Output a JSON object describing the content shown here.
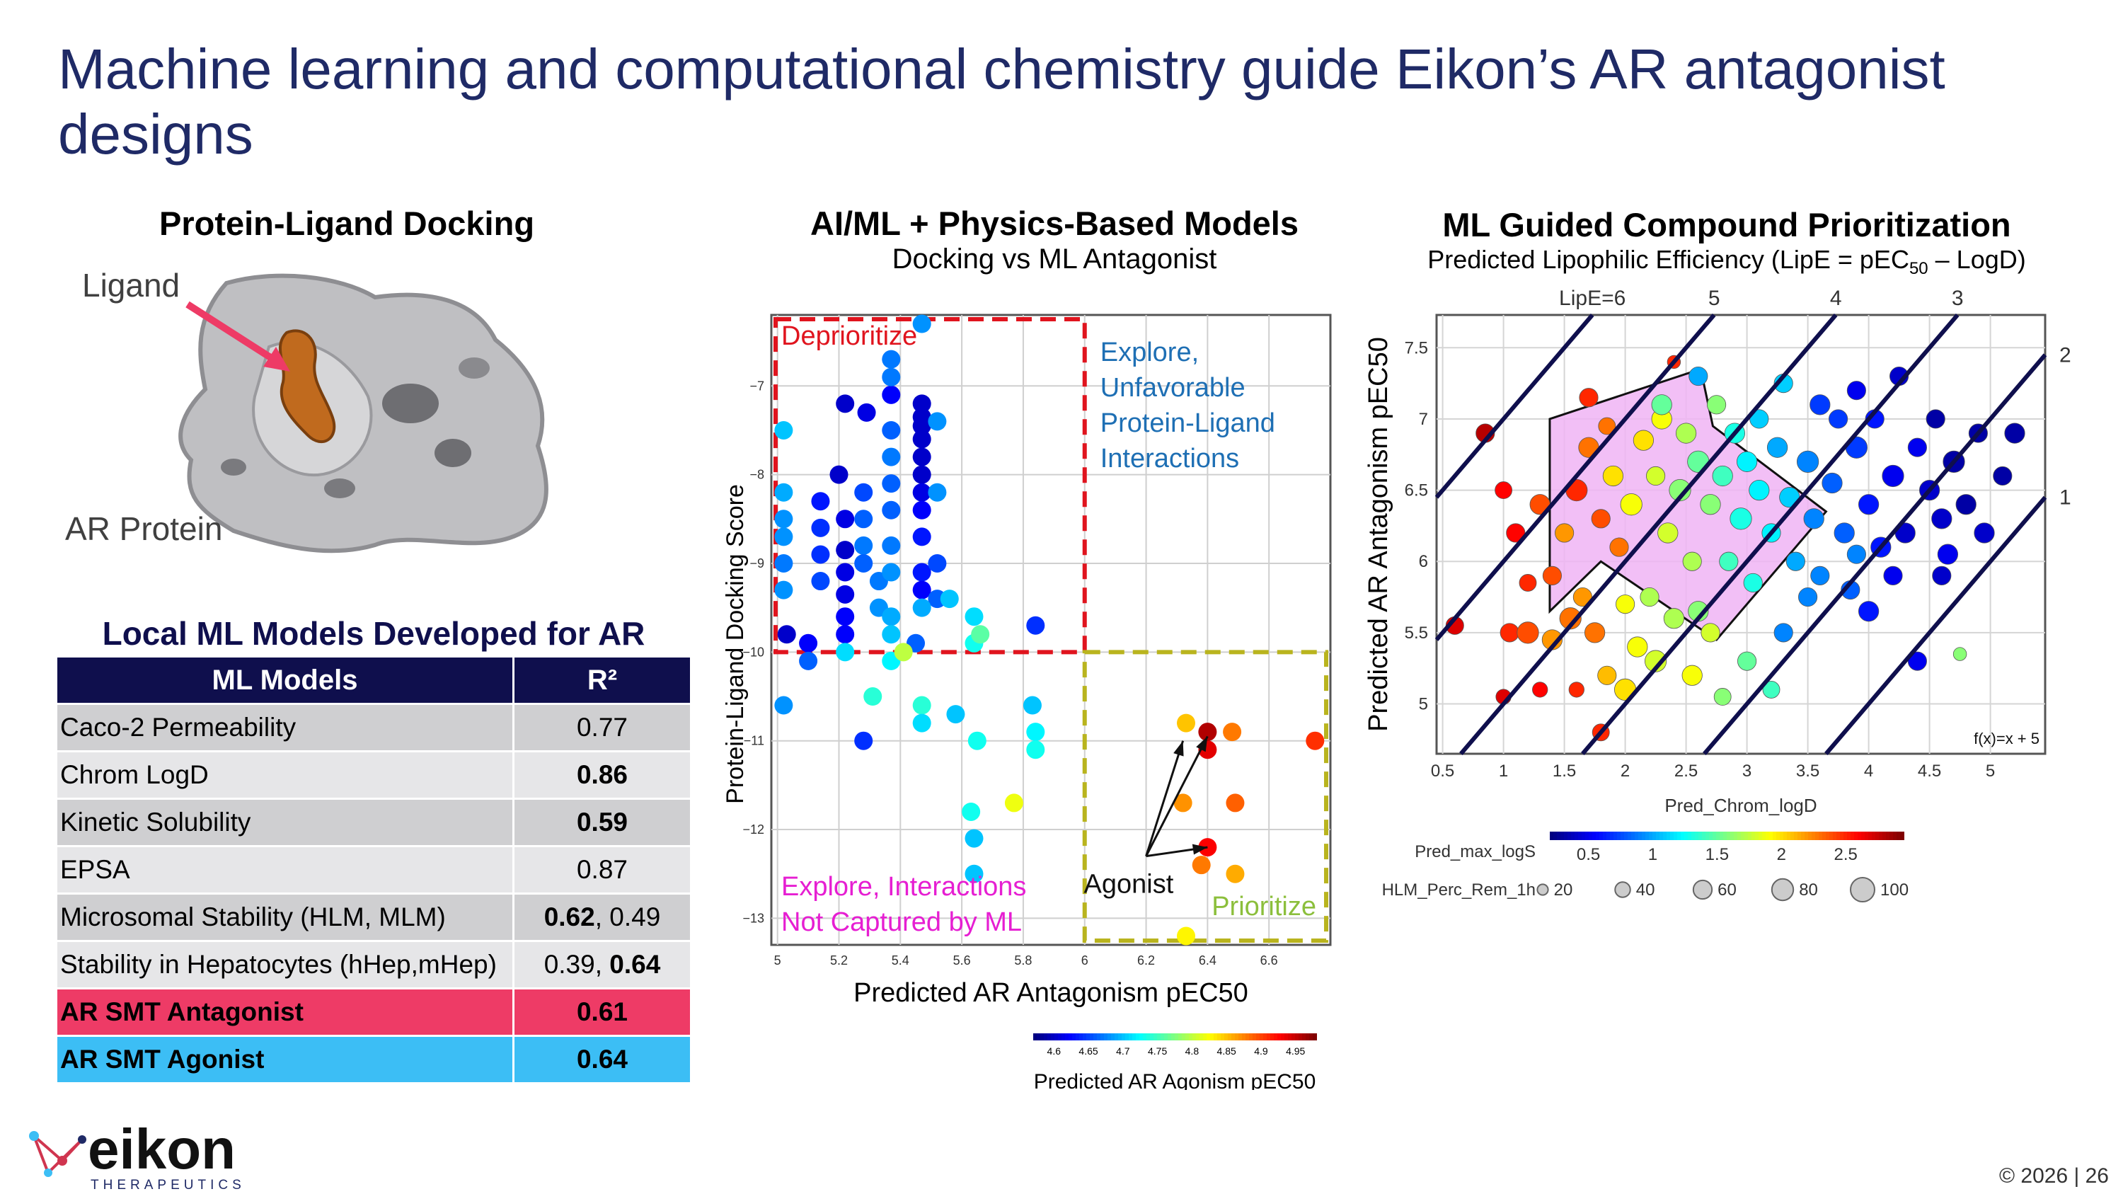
{
  "slide": {
    "title": "Machine learning and computational chemistry guide Eikon’s AR antagonist designs",
    "copyright": "© 2026 | 26"
  },
  "docking": {
    "title": "Protein-Ligand Docking",
    "ligand_label": "Ligand",
    "protein_label": "AR Protein"
  },
  "models": {
    "title": "Local ML Models Developed for AR",
    "header_model": "ML Models",
    "header_r2": "R²",
    "rows": [
      {
        "name": "Caco-2 Permeability",
        "r2": "0.77",
        "bold": false
      },
      {
        "name": "Chrom LogD",
        "r2": "0.86",
        "bold": true
      },
      {
        "name": "Kinetic Solubility",
        "r2": "0.59",
        "bold": true
      },
      {
        "name": "EPSA",
        "r2": "0.87",
        "bold": false
      },
      {
        "name": "Microsomal Stability (HLM, MLM)",
        "r2a": "0.62",
        "r2b": ", 0.49"
      },
      {
        "name": "Stability in Hepatocytes (hHep,mHep)",
        "r2a": "0.39, ",
        "r2b": "0.64"
      },
      {
        "name": "AR SMT Antagonist",
        "r2": "0.61"
      },
      {
        "name": "AR SMT Agonist",
        "r2": "0.64"
      }
    ]
  },
  "logo": {
    "name": "eikon",
    "tagline": "THERAPEUTICS"
  },
  "colors": {
    "title": "#1f2a66",
    "header_fill": "#0f0f4d",
    "antagonist_row": "#ee3b66",
    "agonist_row": "#3cbef5",
    "deprioritize": "#e0141e",
    "prioritize": "#b9b41e",
    "explore_unfavorable": "#1e6fb4",
    "explore_not_captured": "#e61ed2",
    "hull": "#f0b4f5"
  },
  "chart_data": [
    {
      "type": "scatter",
      "title": "AI/ML + Physics-Based Models",
      "subtitle": "Docking vs ML Antagonist",
      "xlabel": "Predicted AR Antagonism pEC50",
      "ylabel": "Protein-Ligand Docking Score",
      "xlim": [
        4.98,
        6.8
      ],
      "ylim": [
        -13.3,
        -6.2
      ],
      "xticks": [
        "5",
        "5.2",
        "5.4",
        "5.6",
        "5.8",
        "6",
        "6.2",
        "6.4",
        "6.6"
      ],
      "yticks": [
        "−7",
        "−8",
        "−9",
        "−10",
        "−11",
        "−12",
        "−13"
      ],
      "grid": true,
      "colorbar": {
        "label": "Predicted AR Agonism pEC50",
        "ticks": [
          "4.6",
          "4.65",
          "4.7",
          "4.75",
          "4.8",
          "4.85",
          "4.9",
          "4.95"
        ],
        "range": [
          4.57,
          4.98
        ]
      },
      "regions": {
        "deprioritize": "Deprioritize",
        "explore_unfavorable": "Explore, Unfavorable Protein-Ligand Interactions",
        "explore_not_captured": "Explore, Interactions Not Captured by ML",
        "prioritize": "Prioritize",
        "agonist": "Agonist"
      },
      "points": [
        [
          5.03,
          -9.8,
          4.6
        ],
        [
          5.1,
          -9.9,
          4.62
        ],
        [
          5.22,
          -7.2,
          4.6
        ],
        [
          5.29,
          -7.3,
          4.61
        ],
        [
          5.37,
          -7.1,
          4.62
        ],
        [
          5.37,
          -6.7,
          4.67
        ],
        [
          5.47,
          -7.2,
          4.6
        ],
        [
          5.47,
          -7.35,
          4.6
        ],
        [
          5.47,
          -7.45,
          4.6
        ],
        [
          5.47,
          -7.6,
          4.6
        ],
        [
          5.47,
          -7.8,
          4.6
        ],
        [
          5.47,
          -8.0,
          4.6
        ],
        [
          5.47,
          -8.2,
          4.61
        ],
        [
          5.47,
          -8.4,
          4.62
        ],
        [
          5.47,
          -8.7,
          4.63
        ],
        [
          5.47,
          -9.1,
          4.63
        ],
        [
          5.47,
          -9.3,
          4.62
        ],
        [
          5.52,
          -9.0,
          4.65
        ],
        [
          5.52,
          -9.4,
          4.66
        ],
        [
          5.45,
          -9.9,
          4.66
        ],
        [
          5.2,
          -8.0,
          4.6
        ],
        [
          5.22,
          -8.5,
          4.61
        ],
        [
          5.22,
          -8.85,
          4.6
        ],
        [
          5.22,
          -9.1,
          4.61
        ],
        [
          5.22,
          -9.35,
          4.61
        ],
        [
          5.22,
          -9.6,
          4.62
        ],
        [
          5.22,
          -9.8,
          4.62
        ],
        [
          5.02,
          -8.2,
          4.69
        ],
        [
          5.02,
          -8.5,
          4.68
        ],
        [
          5.02,
          -8.7,
          4.68
        ],
        [
          5.02,
          -9.0,
          4.67
        ],
        [
          5.02,
          -9.3,
          4.68
        ],
        [
          5.02,
          -7.5,
          4.7
        ],
        [
          5.14,
          -8.3,
          4.63
        ],
        [
          5.14,
          -8.6,
          4.64
        ],
        [
          5.14,
          -8.9,
          4.64
        ],
        [
          5.14,
          -9.2,
          4.65
        ],
        [
          5.28,
          -8.2,
          4.65
        ],
        [
          5.28,
          -8.5,
          4.66
        ],
        [
          5.28,
          -8.8,
          4.67
        ],
        [
          5.28,
          -9.0,
          4.66
        ],
        [
          5.33,
          -9.2,
          4.67
        ],
        [
          5.33,
          -9.5,
          4.68
        ],
        [
          5.37,
          -6.9,
          4.67
        ],
        [
          5.37,
          -7.5,
          4.66
        ],
        [
          5.37,
          -7.8,
          4.67
        ],
        [
          5.37,
          -8.1,
          4.66
        ],
        [
          5.37,
          -8.4,
          4.66
        ],
        [
          5.37,
          -8.8,
          4.67
        ],
        [
          5.37,
          -9.1,
          4.68
        ],
        [
          5.37,
          -9.6,
          4.69
        ],
        [
          5.37,
          -9.8,
          4.7
        ],
        [
          5.47,
          -6.3,
          4.68
        ],
        [
          5.47,
          -9.5,
          4.69
        ],
        [
          5.52,
          -7.4,
          4.68
        ],
        [
          5.52,
          -8.2,
          4.68
        ],
        [
          5.56,
          -9.4,
          4.7
        ],
        [
          5.64,
          -9.6,
          4.71
        ],
        [
          5.64,
          -9.9,
          4.73
        ],
        [
          5.66,
          -9.8,
          4.76
        ],
        [
          5.84,
          -9.7,
          4.64
        ],
        [
          5.1,
          -10.1,
          4.66
        ],
        [
          5.02,
          -10.6,
          4.68
        ],
        [
          5.22,
          -10.0,
          4.71
        ],
        [
          5.31,
          -10.5,
          4.74
        ],
        [
          5.28,
          -11.0,
          4.64
        ],
        [
          5.37,
          -10.1,
          4.72
        ],
        [
          5.47,
          -10.6,
          4.74
        ],
        [
          5.47,
          -10.8,
          4.71
        ],
        [
          5.58,
          -10.7,
          4.7
        ],
        [
          5.63,
          -11.8,
          4.73
        ],
        [
          5.64,
          -12.1,
          4.7
        ],
        [
          5.64,
          -12.5,
          4.7
        ],
        [
          5.65,
          -11.0,
          4.73
        ],
        [
          5.77,
          -11.7,
          4.82
        ],
        [
          5.83,
          -10.6,
          4.7
        ],
        [
          5.84,
          -10.9,
          4.72
        ],
        [
          5.84,
          -11.1,
          4.73
        ],
        [
          5.41,
          -10.0,
          4.8
        ],
        [
          6.33,
          -10.8,
          4.85
        ],
        [
          6.32,
          -11.7,
          4.87
        ],
        [
          6.4,
          -11.1,
          4.94
        ],
        [
          6.4,
          -12.2,
          4.93
        ],
        [
          6.4,
          -10.9,
          4.96
        ],
        [
          6.48,
          -10.9,
          4.88
        ],
        [
          6.49,
          -11.7,
          4.89
        ],
        [
          6.49,
          -12.5,
          4.86
        ],
        [
          6.33,
          -13.2,
          4.83
        ],
        [
          6.75,
          -11.0,
          4.91
        ],
        [
          6.38,
          -12.4,
          4.88
        ]
      ],
      "arrows_to": [
        [
          6.32,
          -11.0
        ],
        [
          6.4,
          -10.95
        ],
        [
          6.4,
          -12.2
        ]
      ]
    },
    {
      "type": "scatter",
      "title": "ML Guided Compound Prioritization",
      "subtitle": "Predicted Lipophilic Efficiency (LipE = pEC50 – LogD)",
      "ylabel": "Predicted AR Antagonism pEC50",
      "xlabel": "Pred_Chrom_logD",
      "xlim": [
        0.45,
        5.45
      ],
      "ylim": [
        4.65,
        7.73
      ],
      "xticks": [
        "0.5",
        "1",
        "1.5",
        "2",
        "2.5",
        "3",
        "3.5",
        "4",
        "4.5",
        "5"
      ],
      "yticks": [
        "5",
        "5.5",
        "6",
        "6.5",
        "7",
        "7.5"
      ],
      "grid": true,
      "lipe_lines": [
        {
          "label": "LipE=6",
          "offset": 6
        },
        {
          "label": "5",
          "offset": 5
        },
        {
          "label": "4",
          "offset": 4
        },
        {
          "label": "3",
          "offset": 3
        },
        {
          "label": "2",
          "offset": 2
        },
        {
          "label": "1",
          "offset": 1
        }
      ],
      "function_label": "f(x)=x + 5",
      "color_legend": {
        "label": "Pred_max_logS",
        "ticks": [
          "0.5",
          "1",
          "1.5",
          "2",
          "2.5"
        ],
        "range": [
          0.2,
          2.95
        ]
      },
      "size_legend": {
        "label": "HLM_Perc_Rem_1h",
        "values": [
          "20",
          "40",
          "60",
          "80",
          "100"
        ]
      },
      "hull": [
        [
          1.38,
          7.0
        ],
        [
          2.62,
          7.35
        ],
        [
          2.72,
          6.95
        ],
        [
          3.65,
          6.35
        ],
        [
          2.75,
          5.45
        ],
        [
          1.8,
          6.0
        ],
        [
          1.38,
          5.65
        ]
      ],
      "points": [
        [
          0.85,
          6.9,
          2.8,
          60
        ],
        [
          1.0,
          6.5,
          2.6,
          50
        ],
        [
          1.7,
          7.15,
          2.5,
          60
        ],
        [
          0.6,
          5.55,
          2.7,
          55
        ],
        [
          1.0,
          5.05,
          2.7,
          40
        ],
        [
          1.3,
          5.1,
          2.6,
          40
        ],
        [
          1.6,
          5.1,
          2.5,
          40
        ],
        [
          1.8,
          4.8,
          2.5,
          50
        ],
        [
          2.4,
          7.4,
          2.5,
          30
        ],
        [
          1.05,
          5.5,
          2.5,
          60
        ],
        [
          1.2,
          5.5,
          2.4,
          80
        ],
        [
          1.4,
          5.45,
          2.2,
          70
        ],
        [
          1.55,
          5.6,
          2.3,
          80
        ],
        [
          1.65,
          5.75,
          2.2,
          60
        ],
        [
          1.75,
          5.5,
          2.3,
          70
        ],
        [
          1.85,
          5.2,
          2.1,
          60
        ],
        [
          2.0,
          5.1,
          2.0,
          80
        ],
        [
          2.1,
          5.4,
          1.9,
          70
        ],
        [
          2.25,
          5.3,
          1.8,
          80
        ],
        [
          2.4,
          5.6,
          1.7,
          70
        ],
        [
          2.55,
          5.2,
          1.9,
          70
        ],
        [
          2.7,
          5.5,
          1.8,
          60
        ],
        [
          2.8,
          5.05,
          1.6,
          50
        ],
        [
          3.0,
          5.3,
          1.5,
          60
        ],
        [
          3.2,
          5.1,
          1.4,
          50
        ],
        [
          1.3,
          6.4,
          2.4,
          70
        ],
        [
          1.5,
          6.2,
          2.2,
          60
        ],
        [
          1.6,
          6.5,
          2.5,
          80
        ],
        [
          1.7,
          6.8,
          2.3,
          70
        ],
        [
          1.8,
          6.3,
          2.4,
          60
        ],
        [
          1.9,
          6.6,
          2.0,
          70
        ],
        [
          1.95,
          6.1,
          2.3,
          60
        ],
        [
          2.05,
          6.4,
          1.9,
          80
        ],
        [
          2.15,
          6.85,
          2.0,
          70
        ],
        [
          2.25,
          6.6,
          1.8,
          60
        ],
        [
          2.3,
          7.0,
          1.9,
          70
        ],
        [
          2.35,
          6.2,
          1.8,
          70
        ],
        [
          2.45,
          6.5,
          1.6,
          80
        ],
        [
          2.5,
          6.9,
          1.7,
          70
        ],
        [
          2.55,
          6.0,
          1.7,
          60
        ],
        [
          2.6,
          6.7,
          1.5,
          80
        ],
        [
          2.7,
          6.4,
          1.6,
          70
        ],
        [
          2.75,
          7.1,
          1.6,
          60
        ],
        [
          2.8,
          6.6,
          1.4,
          70
        ],
        [
          2.85,
          6.0,
          1.4,
          60
        ],
        [
          2.9,
          6.9,
          1.3,
          70
        ],
        [
          2.95,
          6.3,
          1.3,
          80
        ],
        [
          3.0,
          6.7,
          1.2,
          70
        ],
        [
          3.1,
          7.0,
          1.1,
          60
        ],
        [
          3.1,
          6.5,
          1.2,
          70
        ],
        [
          3.2,
          6.2,
          1.2,
          60
        ],
        [
          3.25,
          6.8,
          1.0,
          70
        ],
        [
          3.3,
          7.25,
          1.1,
          60
        ],
        [
          3.35,
          6.45,
          1.1,
          70
        ],
        [
          3.4,
          6.0,
          1.0,
          60
        ],
        [
          3.5,
          6.7,
          0.9,
          80
        ],
        [
          3.55,
          6.3,
          0.9,
          70
        ],
        [
          3.6,
          5.9,
          0.9,
          60
        ],
        [
          3.7,
          6.55,
          0.8,
          70
        ],
        [
          3.75,
          7.0,
          0.7,
          60
        ],
        [
          3.8,
          6.2,
          0.8,
          70
        ],
        [
          3.85,
          5.8,
          0.8,
          60
        ],
        [
          3.9,
          6.8,
          0.7,
          80
        ],
        [
          4.0,
          6.4,
          0.6,
          70
        ],
        [
          4.05,
          7.0,
          0.6,
          60
        ],
        [
          4.1,
          6.1,
          0.6,
          70
        ],
        [
          4.2,
          6.6,
          0.5,
          80
        ],
        [
          4.25,
          7.3,
          0.4,
          60
        ],
        [
          4.3,
          6.2,
          0.4,
          70
        ],
        [
          4.4,
          6.8,
          0.5,
          60
        ],
        [
          4.5,
          6.5,
          0.4,
          70
        ],
        [
          4.55,
          7.0,
          0.3,
          60
        ],
        [
          4.6,
          6.3,
          0.4,
          70
        ],
        [
          4.7,
          6.7,
          0.3,
          80
        ],
        [
          4.8,
          6.4,
          0.3,
          70
        ],
        [
          4.9,
          6.9,
          0.3,
          60
        ],
        [
          4.95,
          6.2,
          0.4,
          70
        ],
        [
          5.1,
          6.6,
          0.3,
          60
        ],
        [
          5.2,
          6.9,
          0.3,
          70
        ],
        [
          4.2,
          5.9,
          0.5,
          60
        ],
        [
          4.0,
          5.65,
          0.6,
          70
        ],
        [
          3.9,
          6.05,
          0.9,
          60
        ],
        [
          4.4,
          5.3,
          0.5,
          60
        ],
        [
          3.3,
          5.5,
          0.9,
          60
        ],
        [
          2.6,
          5.65,
          1.6,
          70
        ],
        [
          2.2,
          5.75,
          1.7,
          60
        ],
        [
          3.05,
          5.85,
          1.3,
          60
        ],
        [
          3.5,
          5.75,
          0.9,
          60
        ],
        [
          4.6,
          5.9,
          0.4,
          60
        ],
        [
          4.75,
          5.35,
          1.6,
          30
        ],
        [
          1.2,
          5.85,
          2.5,
          50
        ],
        [
          1.4,
          5.9,
          2.4,
          60
        ],
        [
          1.1,
          6.2,
          2.6,
          60
        ],
        [
          2.3,
          7.1,
          1.5,
          70
        ],
        [
          2.6,
          7.3,
          1.0,
          60
        ],
        [
          3.6,
          7.1,
          0.7,
          70
        ],
        [
          3.9,
          7.2,
          0.5,
          60
        ],
        [
          1.85,
          6.95,
          2.3,
          50
        ],
        [
          4.65,
          6.05,
          0.5,
          70
        ],
        [
          2.0,
          5.7,
          1.9,
          60
        ]
      ]
    }
  ]
}
